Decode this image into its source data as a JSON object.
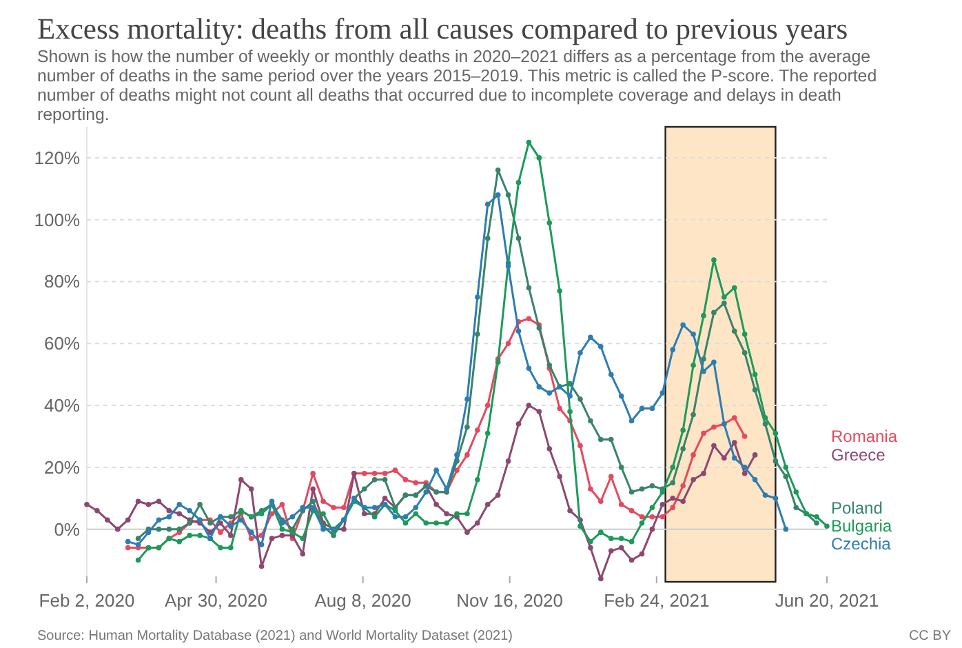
{
  "chart_data": {
    "type": "line",
    "title": "Excess mortality: deaths from all causes compared to previous years",
    "subtitle": "Shown is how the number of weekly or monthly deaths in 2020–2021 differs as a percentage from the average number of deaths in the same period over the years 2015–2019. This metric is called the P-score. The reported number of deaths might not count all deaths that occurred due to incomplete coverage and delays in death reporting.",
    "annotations": [
      "Source: Human Mortality Database (2021) and World Mortality Dataset (2021)",
      "CC BY"
    ],
    "x": [
      "2020-02-02",
      "2020-02-09",
      "2020-02-16",
      "2020-02-23",
      "2020-03-01",
      "2020-03-08",
      "2020-03-15",
      "2020-03-22",
      "2020-03-29",
      "2020-04-05",
      "2020-04-12",
      "2020-04-19",
      "2020-04-26",
      "2020-05-03",
      "2020-05-10",
      "2020-05-17",
      "2020-05-24",
      "2020-05-31",
      "2020-06-07",
      "2020-06-14",
      "2020-06-21",
      "2020-06-28",
      "2020-07-05",
      "2020-07-12",
      "2020-07-19",
      "2020-07-26",
      "2020-08-02",
      "2020-08-09",
      "2020-08-16",
      "2020-08-23",
      "2020-08-30",
      "2020-09-06",
      "2020-09-13",
      "2020-09-20",
      "2020-09-27",
      "2020-10-04",
      "2020-10-11",
      "2020-10-18",
      "2020-10-25",
      "2020-11-01",
      "2020-11-08",
      "2020-11-15",
      "2020-11-22",
      "2020-11-29",
      "2020-12-06",
      "2020-12-13",
      "2020-12-20",
      "2020-12-27",
      "2021-01-03",
      "2021-01-10",
      "2021-01-17",
      "2021-01-24",
      "2021-01-31",
      "2021-02-07",
      "2021-02-14",
      "2021-02-21",
      "2021-02-28",
      "2021-03-07",
      "2021-03-14",
      "2021-03-21",
      "2021-03-28",
      "2021-04-04",
      "2021-04-11",
      "2021-04-18",
      "2021-04-25",
      "2021-05-02",
      "2021-05-09",
      "2021-05-16",
      "2021-05-23",
      "2021-05-30",
      "2021-06-06",
      "2021-06-13",
      "2021-06-20"
    ],
    "series": [
      {
        "name": "Romania",
        "color": "#e34a5e",
        "values": [
          null,
          null,
          null,
          null,
          -6,
          -6,
          -6,
          -6,
          -3,
          -1,
          2,
          3,
          3,
          -1,
          2,
          5,
          -3,
          -2,
          5,
          8,
          -3,
          6,
          18,
          9,
          7,
          7,
          18,
          18,
          18,
          18,
          19,
          16,
          15,
          15,
          12,
          12,
          19,
          24,
          32,
          40,
          55,
          60,
          67,
          68,
          66,
          52,
          39,
          35,
          27,
          13,
          9,
          17,
          8,
          6,
          4,
          4,
          4,
          7,
          14,
          24,
          31,
          33,
          34,
          36,
          30,
          null,
          null,
          null,
          null,
          null,
          null,
          null,
          null
        ]
      },
      {
        "name": "Greece",
        "color": "#8c4871",
        "values": [
          8,
          6,
          3,
          0,
          3,
          9,
          8,
          9,
          6,
          5,
          3,
          2,
          -1,
          2,
          -2,
          16,
          13,
          -12,
          -3,
          -2,
          -2,
          -8,
          13,
          2,
          0,
          0,
          18,
          5,
          5,
          10,
          7,
          11,
          11,
          14,
          8,
          5,
          4,
          -1,
          2,
          8,
          11,
          22,
          34,
          40,
          38,
          26,
          17,
          6,
          3,
          -6,
          -16,
          -7,
          -6,
          -10,
          -8,
          0,
          8,
          10,
          9,
          16,
          18,
          27,
          23,
          28,
          18,
          24,
          null,
          null,
          null,
          null,
          null,
          null,
          null
        ]
      },
      {
        "name": "Poland",
        "color": "#38846a",
        "values": [
          null,
          null,
          null,
          null,
          null,
          -3,
          0,
          0,
          0,
          0,
          2,
          8,
          2,
          4,
          4,
          6,
          4,
          6,
          8,
          3,
          0,
          6,
          9,
          1,
          -2,
          3,
          10,
          13,
          16,
          16,
          7,
          11,
          11,
          14,
          12,
          12,
          22,
          33,
          63,
          94,
          116,
          108,
          94,
          78,
          65,
          53,
          46,
          47,
          42,
          35,
          29,
          29,
          20,
          12,
          13,
          14,
          13,
          15,
          26,
          37,
          55,
          70,
          73,
          64,
          57,
          45,
          34,
          22,
          17,
          7,
          5,
          2,
          null
        ]
      },
      {
        "name": "Bulgaria",
        "color": "#1d9a5a",
        "values": [
          null,
          null,
          null,
          null,
          null,
          -10,
          -6,
          -6,
          -3,
          -4,
          -2,
          -2,
          -3,
          -6,
          -6,
          6,
          4,
          5,
          8,
          0,
          -1,
          -3,
          6,
          5,
          -1,
          3,
          9,
          7,
          4,
          8,
          6,
          2,
          5,
          2,
          2,
          2,
          5,
          5,
          16,
          31,
          54,
          86,
          112,
          125,
          120,
          99,
          77,
          38,
          1,
          -4,
          -1,
          -3,
          -3,
          -4,
          2,
          7,
          12,
          20,
          32,
          53,
          69,
          87,
          75,
          78,
          63,
          50,
          36,
          31,
          20,
          12,
          5,
          4,
          1
        ]
      },
      {
        "name": "Czechia",
        "color": "#2d7db3",
        "values": [
          null,
          null,
          null,
          null,
          -4,
          -5,
          -1,
          3,
          4,
          8,
          6,
          3,
          -3,
          4,
          1,
          3,
          -1,
          -5,
          9,
          2,
          4,
          7,
          7,
          0,
          0,
          3,
          10,
          7,
          7,
          8,
          4,
          4,
          7,
          12,
          19,
          13,
          24,
          42,
          75,
          105,
          108,
          85,
          64,
          52,
          46,
          44,
          46,
          43,
          57,
          62,
          59,
          50,
          43,
          35,
          39,
          39,
          44,
          58,
          66,
          63,
          51,
          54,
          34,
          23,
          20,
          16,
          11,
          10,
          0,
          null,
          null,
          null,
          null
        ]
      }
    ],
    "xlim": [
      "2020-02-02",
      "2021-06-20"
    ],
    "xticks": [
      {
        "value": "2020-02-02",
        "label": "Feb 2, 2020"
      },
      {
        "value": "2020-04-30",
        "label": "Apr 30, 2020"
      },
      {
        "value": "2020-08-08",
        "label": "Aug 8, 2020"
      },
      {
        "value": "2020-11-16",
        "label": "Nov 16, 2020"
      },
      {
        "value": "2021-02-24",
        "label": "Feb 24, 2021"
      },
      {
        "value": "2021-06-20",
        "label": "Jun 20, 2021"
      }
    ],
    "ylim": [
      -17,
      130
    ],
    "yticks": [
      {
        "value": 0,
        "label": "0%"
      },
      {
        "value": 20,
        "label": "20%"
      },
      {
        "value": 40,
        "label": "40%"
      },
      {
        "value": 60,
        "label": "60%"
      },
      {
        "value": 80,
        "label": "80%"
      },
      {
        "value": 100,
        "label": "100%"
      },
      {
        "value": 120,
        "label": "120%"
      }
    ],
    "bands": [
      {
        "axis": "x",
        "from": "2021-03-02",
        "to": "2021-05-16",
        "color": "#fde5c6"
      }
    ],
    "grid": "y",
    "legend": "right",
    "marker": "circle",
    "line_style": "solid"
  }
}
